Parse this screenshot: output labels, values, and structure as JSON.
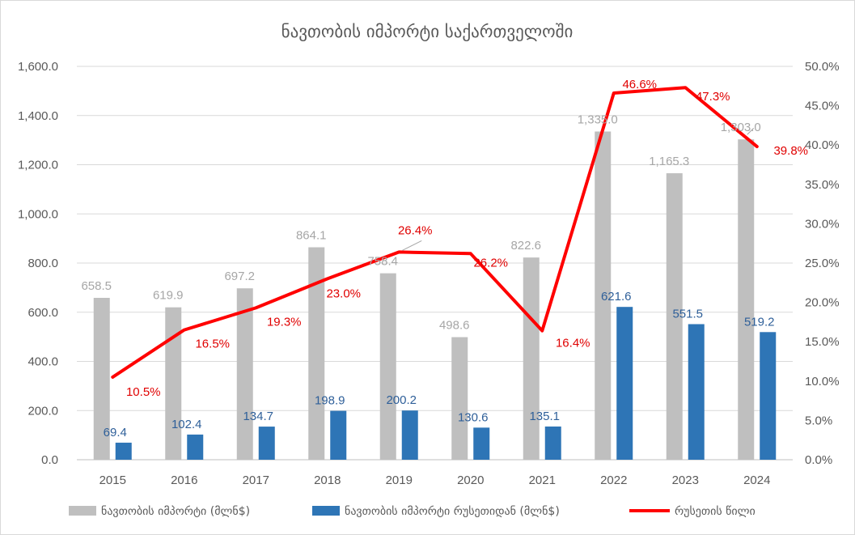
{
  "chart_data": {
    "type": "bar",
    "title": "ნავთობის იმპორტი საქართველოში",
    "categories": [
      "2015",
      "2016",
      "2017",
      "2018",
      "2019",
      "2020",
      "2021",
      "2022",
      "2023",
      "2024"
    ],
    "series": [
      {
        "name": "ნავთობის იმპორტი (მლნ$)",
        "type": "bar",
        "axis": "left",
        "color": "#bfbfbf",
        "values": [
          658.5,
          619.9,
          697.2,
          864.1,
          758.4,
          498.6,
          822.6,
          1335.0,
          1165.3,
          1303.0
        ],
        "labels": [
          "658.5",
          "619.9",
          "697.2",
          "864.1",
          "758.4",
          "498.6",
          "822.6",
          "1,335.0",
          "1,165.3",
          "1,303.0"
        ]
      },
      {
        "name": "ნავთობის იმპორტი რუსეთიდან (მლნ$)",
        "type": "bar",
        "axis": "left",
        "color": "#2e75b6",
        "values": [
          69.4,
          102.4,
          134.7,
          198.9,
          200.2,
          130.6,
          135.1,
          621.6,
          551.5,
          519.2
        ],
        "labels": [
          "69.4",
          "102.4",
          "134.7",
          "198.9",
          "200.2",
          "130.6",
          "135.1",
          "621.6",
          "551.5",
          "519.2"
        ]
      },
      {
        "name": "რუსეთის წილი",
        "type": "line",
        "axis": "right",
        "color": "#ff0000",
        "values": [
          10.5,
          16.5,
          19.3,
          23.0,
          26.4,
          26.2,
          16.4,
          46.6,
          47.3,
          39.8
        ],
        "labels": [
          "10.5%",
          "16.5%",
          "19.3%",
          "23.0%",
          "26.4%",
          "26.2%",
          "16.4%",
          "46.6%",
          "47.3%",
          "39.8%"
        ]
      }
    ],
    "y_left": {
      "ylim": [
        0,
        1600
      ],
      "ticks": [
        "0.0",
        "200.0",
        "400.0",
        "600.0",
        "800.0",
        "1,000.0",
        "1,200.0",
        "1,400.0",
        "1,600.0"
      ]
    },
    "y_right": {
      "ylim": [
        0,
        50
      ],
      "ticks": [
        "0.0%",
        "5.0%",
        "10.0%",
        "15.0%",
        "20.0%",
        "25.0%",
        "30.0%",
        "35.0%",
        "40.0%",
        "45.0%",
        "50.0%"
      ]
    },
    "grid": true,
    "legend_position": "bottom"
  }
}
